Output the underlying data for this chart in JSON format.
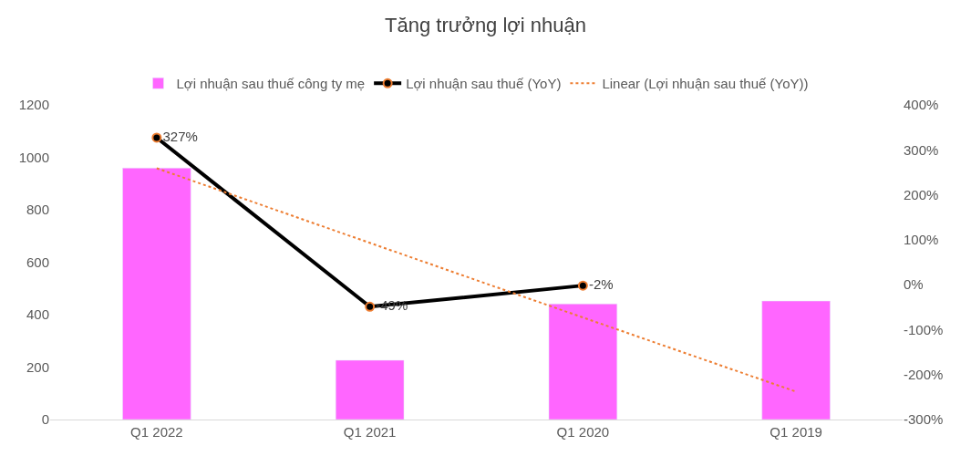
{
  "chart_data": {
    "type": "bar",
    "title": "Tăng trưởng lợi nhuận",
    "categories": [
      "Q1 2022",
      "Q1 2021",
      "Q1 2020",
      "Q1 2019"
    ],
    "series": [
      {
        "name": "Lợi nhuận sau thuế công ty mẹ",
        "color": "#ff66ff",
        "values": [
          959,
          226,
          441,
          452
        ]
      },
      {
        "name": "Lợi nhuận sau thuế (YoY)",
        "type": "line",
        "axis": "y2",
        "color": "#000000",
        "marker": "circle",
        "line_style": "solid",
        "values": [
          327,
          -49,
          -2,
          null
        ],
        "value_labels": [
          "327%",
          "-49%",
          "-2%",
          null
        ]
      },
      {
        "name": "Linear (Lợi nhuận sau thuế (YoY))",
        "type": "line",
        "axis": "y2",
        "color": "#ed7d31",
        "marker": "none",
        "line_style": "dotted",
        "values": [
          259,
          93,
          -73,
          -238
        ]
      }
    ],
    "ylim": [
      0,
      1200
    ],
    "yticks": [
      0,
      200,
      400,
      600,
      800,
      1000,
      1200
    ],
    "y2lim": [
      -300,
      400
    ],
    "y2ticks": [
      {
        "value": -300,
        "label": "-300%"
      },
      {
        "value": -200,
        "label": "-200%"
      },
      {
        "value": -100,
        "label": "-100%"
      },
      {
        "value": 0,
        "label": "0%"
      },
      {
        "value": 100,
        "label": "100%"
      },
      {
        "value": 200,
        "label": "200%"
      },
      {
        "value": 300,
        "label": "300%"
      },
      {
        "value": 400,
        "label": "400%"
      }
    ],
    "legend": "top"
  }
}
